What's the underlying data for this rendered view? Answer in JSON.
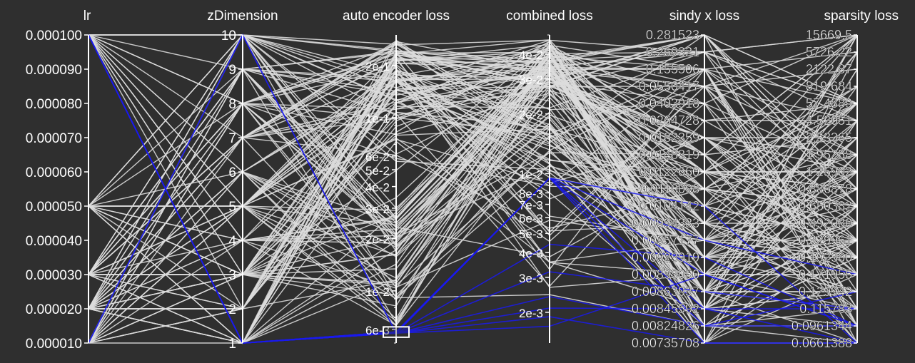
{
  "chart_data": {
    "type": "parallel-coordinates",
    "colors": {
      "background": "#2f2f2f",
      "axis": "#ffffff",
      "context": "#dcdcdc",
      "highlight": "#1a1aee"
    },
    "dimensions": [
      {
        "key": "lr",
        "title": "lr",
        "scale": "linear",
        "domain": [
          1e-05,
          0.0001
        ],
        "tick_values": [
          0.0001,
          9e-05,
          8e-05,
          7e-05,
          6e-05,
          5e-05,
          4e-05,
          3e-05,
          2e-05,
          1e-05
        ],
        "tick_labels": [
          "0.000100",
          "0.000090",
          "0.000080",
          "0.000070",
          "0.000060",
          "0.000050",
          "0.000040",
          "0.000030",
          "0.000020",
          "0.000010"
        ]
      },
      {
        "key": "zDimension",
        "title": "zDimension",
        "scale": "linear",
        "domain": [
          1,
          10
        ],
        "tick_values": [
          10,
          9,
          8,
          7,
          6,
          5,
          4,
          3,
          2,
          1
        ],
        "tick_labels": [
          "10",
          "9",
          "8",
          "7",
          "6",
          "5",
          "4",
          "3",
          "2",
          "1"
        ]
      },
      {
        "key": "ae_loss",
        "title": "auto encoder loss",
        "scale": "log",
        "domain": [
          0.005,
          0.3
        ],
        "tick_values": [
          0.2,
          0.1,
          0.06,
          0.05,
          0.04,
          0.03,
          0.02,
          0.01,
          0.006
        ],
        "tick_labels": [
          "2e-1",
          "1e-1",
          "6e-2",
          "5e-2",
          "4e-2",
          "3e-2",
          "2e-2",
          "1e-2",
          "6e-3"
        ]
      },
      {
        "key": "combined_loss",
        "title": "combined loss",
        "scale": "log",
        "domain": [
          0.0014,
          0.05
        ],
        "tick_values": [
          0.04,
          0.03,
          0.02,
          0.01,
          0.008,
          0.007,
          0.006,
          0.005,
          0.004,
          0.003,
          0.002
        ],
        "tick_labels": [
          "4e-2",
          "3e-2",
          "2e-2",
          "1e-2",
          "8e-3",
          "7e-3",
          "6e-3",
          "5e-3",
          "4e-3",
          "3e-3",
          "2e-3"
        ]
      },
      {
        "key": "sindy_x_loss",
        "title": "sindy x loss",
        "scale": "ordinal",
        "values": [
          "0.281523",
          "0.269321",
          "0.155506",
          "0.0550417",
          "0.0403918",
          "0.0264728",
          "0.0182359",
          "0.0148319",
          "0.0122660",
          "0.0110098",
          "0.0104142",
          "0.00994333",
          "0.00957177",
          "0.00923919",
          "0.00893050",
          "0.00863937",
          "0.00845592",
          "0.00824826",
          "0.00735708"
        ]
      },
      {
        "key": "sparsity_loss",
        "title": "sparsity loss",
        "scale": "ordinal",
        "values": [
          "15669.5",
          "5726.22",
          "2122.87",
          "819.684",
          "57.4889",
          "4.52051",
          "2.53365",
          "1.95258",
          "1.25902",
          "0.886878",
          "0.650382",
          "0.492080",
          "0.329961",
          "0.192360",
          "0.171955",
          "0.129942",
          "0.115783",
          "0.0961344",
          "0.0661388"
        ]
      }
    ],
    "highlighted_records": [
      {
        "lr": 0.0001,
        "zDimension": 1,
        "ae_loss": 0.0058,
        "combined_loss": 0.0095,
        "sindy_x_loss": "0.0104142",
        "sparsity_loss": "0.0661388"
      },
      {
        "lr": 0.0001,
        "zDimension": 1,
        "ae_loss": 0.0058,
        "combined_loss": 0.0095,
        "sindy_x_loss": "0.00893050",
        "sparsity_loss": "0.0961344"
      },
      {
        "lr": 0.0001,
        "zDimension": 1,
        "ae_loss": 0.0058,
        "combined_loss": 0.0095,
        "sindy_x_loss": "0.00845592",
        "sparsity_loss": "0.115783"
      },
      {
        "lr": 0.0001,
        "zDimension": 1,
        "ae_loss": 0.0058,
        "combined_loss": 0.0095,
        "sindy_x_loss": "0.00824826",
        "sparsity_loss": "0.129942"
      },
      {
        "lr": 1e-05,
        "zDimension": 10,
        "ae_loss": 0.0057,
        "combined_loss": 0.0095,
        "sindy_x_loss": "0.00957177",
        "sparsity_loss": "0.171955"
      },
      {
        "lr": 1e-05,
        "zDimension": 10,
        "ae_loss": 0.0057,
        "combined_loss": 0.0095,
        "sindy_x_loss": "0.00735708",
        "sparsity_loss": "0.0661388"
      },
      {
        "lr": 0.0001,
        "zDimension": 1,
        "ae_loss": 0.0057,
        "combined_loss": 0.0044,
        "sindy_x_loss": "0.00923919",
        "sparsity_loss": "0.0961344"
      },
      {
        "lr": 0.0001,
        "zDimension": 1,
        "ae_loss": 0.0057,
        "combined_loss": 0.0032,
        "sindy_x_loss": "0.00863937",
        "sparsity_loss": "0.115783"
      },
      {
        "lr": 0.0001,
        "zDimension": 1,
        "ae_loss": 0.0057,
        "combined_loss": 0.0024,
        "sindy_x_loss": "0.00824826",
        "sparsity_loss": "0.0961344"
      },
      {
        "lr": 0.0001,
        "zDimension": 1,
        "ae_loss": 0.0057,
        "combined_loss": 0.0021,
        "sindy_x_loss": "0.00845592",
        "sparsity_loss": "0.0661388"
      },
      {
        "lr": 0.0001,
        "zDimension": 1,
        "ae_loss": 0.0057,
        "combined_loss": 0.0019,
        "sindy_x_loss": "0.00735708",
        "sparsity_loss": "0.0661388"
      },
      {
        "lr": 0.0001,
        "zDimension": 1,
        "ae_loss": 0.0057,
        "combined_loss": 0.0017,
        "sindy_x_loss": "0.00893050",
        "sparsity_loss": "0.0961344"
      }
    ],
    "brush": {
      "dimension": "ae_loss",
      "range": [
        0.0054,
        0.0062
      ]
    }
  }
}
